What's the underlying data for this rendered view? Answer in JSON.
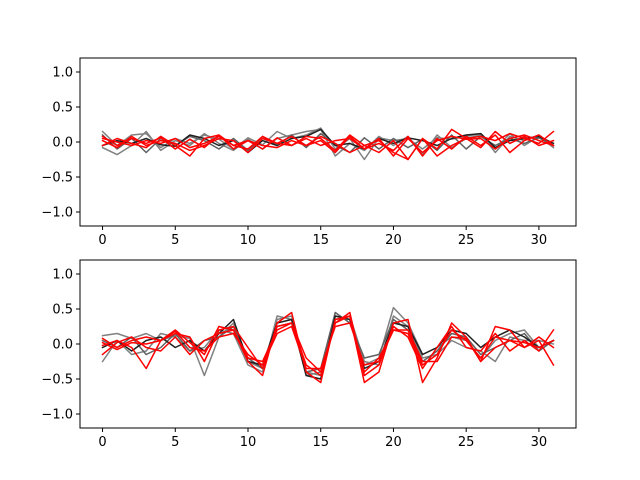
{
  "chart_data": [
    {
      "type": "line",
      "xlim": [
        -1.55,
        32.55
      ],
      "ylim": [
        -1.2,
        1.2
      ],
      "xticks": [
        0,
        5,
        10,
        15,
        20,
        25,
        30
      ],
      "yticks": [
        -1.0,
        -0.5,
        0.0,
        0.5,
        1.0
      ],
      "xtick_labels": [
        "0",
        "5",
        "10",
        "15",
        "20",
        "25",
        "30"
      ],
      "ytick_labels": [
        "−1.0",
        "−0.5",
        "0.0",
        "0.5",
        "1.0"
      ],
      "grid": false,
      "series": [
        {
          "color": "#808080",
          "values": [
            0.15,
            -0.05,
            0.1,
            0.12,
            -0.08,
            0.05,
            -0.02,
            0.1,
            0.04,
            -0.1,
            0.06,
            -0.04,
            0.15,
            0.05,
            0.1,
            0.2,
            -0.1,
            0.05,
            -0.25,
            0.06,
            0.02,
            0.05,
            -0.1,
            0.06,
            0.04,
            0.08,
            0.12,
            -0.15,
            0.08,
            0.02,
            0.1,
            -0.05
          ]
        },
        {
          "color": "#808080",
          "values": [
            -0.08,
            -0.18,
            -0.05,
            0.15,
            -0.12,
            0.02,
            -0.05,
            0.12,
            -0.02,
            -0.12,
            0.04,
            -0.1,
            0.05,
            0.1,
            0.15,
            0.18,
            -0.2,
            -0.02,
            -0.12,
            0.08,
            -0.05,
            0.08,
            -0.18,
            0.1,
            -0.08,
            0.05,
            0.1,
            -0.1,
            0.12,
            -0.05,
            0.08,
            -0.08
          ]
        },
        {
          "color": "#606060",
          "values": [
            0.1,
            -0.1,
            0.05,
            -0.15,
            0.05,
            -0.05,
            0.08,
            0.02,
            -0.1,
            0.05,
            -0.12,
            0.08,
            -0.05,
            0.1,
            -0.08,
            0.12,
            -0.05,
            -0.15,
            0.06,
            -0.1,
            0.05,
            -0.08,
            0.04,
            -0.12,
            0.1,
            -0.1,
            0.08,
            -0.05,
            0.05,
            -0.02,
            0.06,
            -0.05
          ]
        },
        {
          "color": "#202020",
          "values": [
            -0.05,
            0.02,
            -0.02,
            0.05,
            -0.04,
            -0.06,
            0.1,
            0.05,
            -0.05,
            0.02,
            -0.15,
            0.02,
            -0.05,
            0.05,
            0.08,
            0.18,
            -0.05,
            -0.02,
            -0.1,
            0.05,
            -0.02,
            0.06,
            0.02,
            -0.05,
            0.05,
            0.1,
            0.12,
            -0.08,
            0.02,
            0.05,
            0.08,
            -0.02
          ]
        },
        {
          "color": "#ff0000",
          "values": [
            0.08,
            -0.05,
            0.05,
            -0.02,
            0.06,
            -0.1,
            0.04,
            -0.08,
            0.1,
            -0.05,
            0.02,
            -0.1,
            0.06,
            -0.05,
            0.08,
            0.05,
            -0.12,
            0.1,
            -0.05,
            -0.15,
            0.02,
            -0.25,
            0.05,
            -0.1,
            0.18,
            0.05,
            0.08,
            0.02,
            0.12,
            0.05,
            -0.02,
            0.15
          ]
        },
        {
          "color": "#ff0000",
          "values": [
            0.02,
            -0.08,
            0.08,
            -0.05,
            0.02,
            -0.02,
            -0.12,
            -0.05,
            0.05,
            0.02,
            -0.15,
            0.05,
            -0.02,
            0.08,
            -0.05,
            0.02,
            -0.15,
            0.08,
            -0.1,
            0.05,
            -0.2,
            0.05,
            -0.15,
            0.02,
            0.08,
            0.04,
            0.05,
            -0.1,
            0.05,
            0.1,
            0.02,
            -0.05
          ]
        },
        {
          "color": "#ff0000",
          "values": [
            -0.05,
            0.05,
            -0.02,
            -0.08,
            0.08,
            -0.05,
            -0.2,
            0.05,
            0.1,
            -0.1,
            0.02,
            -0.05,
            -0.08,
            0.02,
            -0.05,
            0.08,
            -0.02,
            -0.15,
            -0.05,
            0.02,
            -0.15,
            -0.25,
            0.05,
            -0.2,
            -0.05,
            0.05,
            -0.08,
            0.15,
            -0.02,
            0.08,
            -0.05,
            0.02
          ]
        },
        {
          "color": "#ff0000",
          "values": [
            0.05,
            0.0,
            -0.05,
            0.02,
            -0.02,
            0.05,
            -0.08,
            -0.02,
            0.08,
            -0.05,
            -0.1,
            0.08,
            -0.02,
            -0.05,
            0.05,
            -0.05,
            0.02,
            0.05,
            -0.1,
            -0.02,
            -0.12,
            0.08,
            -0.2,
            0.05,
            -0.1,
            0.08,
            -0.05,
            0.1,
            -0.15,
            0.02,
            0.1,
            -0.05
          ]
        }
      ]
    },
    {
      "type": "line",
      "xlim": [
        -1.55,
        32.55
      ],
      "ylim": [
        -1.2,
        1.2
      ],
      "xticks": [
        0,
        5,
        10,
        15,
        20,
        25,
        30
      ],
      "yticks": [
        -1.0,
        -0.5,
        0.0,
        0.5,
        1.0
      ],
      "xtick_labels": [
        "0",
        "5",
        "10",
        "15",
        "20",
        "25",
        "30"
      ],
      "ytick_labels": [
        "−1.0",
        "−0.5",
        "0.0",
        "0.5",
        "1.0"
      ],
      "grid": false,
      "series": [
        {
          "color": "#808080",
          "values": [
            0.12,
            0.15,
            0.08,
            0.15,
            0.05,
            0.12,
            0.08,
            -0.45,
            0.1,
            0.3,
            -0.25,
            -0.35,
            0.35,
            0.4,
            -0.45,
            -0.4,
            0.4,
            0.35,
            -0.3,
            -0.2,
            0.52,
            0.3,
            -0.15,
            -0.05,
            0.1,
            0.05,
            -0.2,
            0.05,
            0.15,
            0.2,
            -0.05,
            0.05
          ]
        },
        {
          "color": "#808080",
          "values": [
            -0.25,
            0.05,
            -0.15,
            -0.1,
            0.15,
            0.1,
            -0.1,
            -0.05,
            0.2,
            0.15,
            -0.3,
            -0.4,
            0.4,
            0.35,
            -0.4,
            -0.45,
            0.35,
            0.4,
            -0.25,
            -0.3,
            0.4,
            0.25,
            -0.2,
            -0.15,
            0.05,
            -0.05,
            -0.1,
            -0.25,
            0.1,
            0.05,
            0.05,
            0.0
          ]
        },
        {
          "color": "#606060",
          "values": [
            0.05,
            -0.05,
            0.1,
            -0.15,
            -0.05,
            0.15,
            -0.1,
            0.05,
            0.1,
            0.25,
            -0.2,
            -0.35,
            0.25,
            0.3,
            -0.4,
            -0.35,
            0.45,
            0.3,
            -0.2,
            -0.15,
            0.35,
            0.2,
            -0.25,
            -0.1,
            0.15,
            0.1,
            -0.15,
            -0.05,
            0.05,
            0.15,
            -0.1,
            0.05
          ]
        },
        {
          "color": "#202020",
          "values": [
            -0.05,
            0.05,
            -0.1,
            0.05,
            0.1,
            -0.05,
            0.05,
            -0.1,
            0.15,
            0.35,
            -0.25,
            -0.3,
            0.3,
            0.35,
            -0.45,
            -0.5,
            0.4,
            0.35,
            -0.35,
            -0.25,
            0.3,
            0.25,
            -0.15,
            -0.05,
            0.2,
            0.15,
            -0.05,
            0.1,
            0.2,
            0.1,
            -0.05,
            0.05
          ]
        },
        {
          "color": "#ff0000",
          "values": [
            0.08,
            -0.05,
            0.05,
            0.1,
            0.05,
            0.2,
            0.02,
            -0.15,
            0.25,
            0.2,
            -0.25,
            -0.45,
            0.3,
            0.45,
            -0.4,
            -0.55,
            0.35,
            0.4,
            -0.55,
            -0.4,
            0.3,
            0.35,
            -0.55,
            -0.2,
            0.3,
            0.1,
            -0.25,
            0.25,
            0.2,
            -0.05,
            0.1,
            -0.05
          ]
        },
        {
          "color": "#ff0000",
          "values": [
            -0.02,
            0.05,
            -0.05,
            -0.35,
            0.05,
            0.15,
            0.1,
            -0.25,
            0.2,
            0.25,
            -0.05,
            -0.35,
            0.25,
            0.3,
            -0.3,
            -0.45,
            0.3,
            0.45,
            -0.45,
            -0.3,
            0.25,
            0.1,
            -0.35,
            -0.05,
            0.25,
            -0.05,
            -0.1,
            0.15,
            -0.1,
            0.05,
            -0.1,
            0.2
          ]
        },
        {
          "color": "#ff0000",
          "values": [
            -0.15,
            0.02,
            0.1,
            -0.05,
            -0.1,
            0.1,
            -0.15,
            0.05,
            0.15,
            0.2,
            -0.2,
            -0.25,
            0.2,
            0.3,
            -0.2,
            -0.4,
            0.3,
            0.4,
            -0.4,
            -0.2,
            0.2,
            0.15,
            -0.3,
            -0.15,
            0.2,
            0.05,
            -0.2,
            0.1,
            0.05,
            -0.05,
            0.05,
            -0.3
          ]
        },
        {
          "color": "#ff0000",
          "values": [
            0.02,
            -0.08,
            0.02,
            0.0,
            0.05,
            0.18,
            -0.05,
            -0.1,
            0.1,
            0.15,
            -0.15,
            -0.3,
            0.15,
            0.25,
            -0.35,
            -0.35,
            0.25,
            0.3,
            -0.3,
            -0.25,
            0.2,
            0.2,
            -0.25,
            -0.25,
            0.1,
            0.08,
            -0.25,
            -0.05,
            0.05,
            0.02,
            -0.05,
            0.05
          ]
        }
      ]
    }
  ]
}
